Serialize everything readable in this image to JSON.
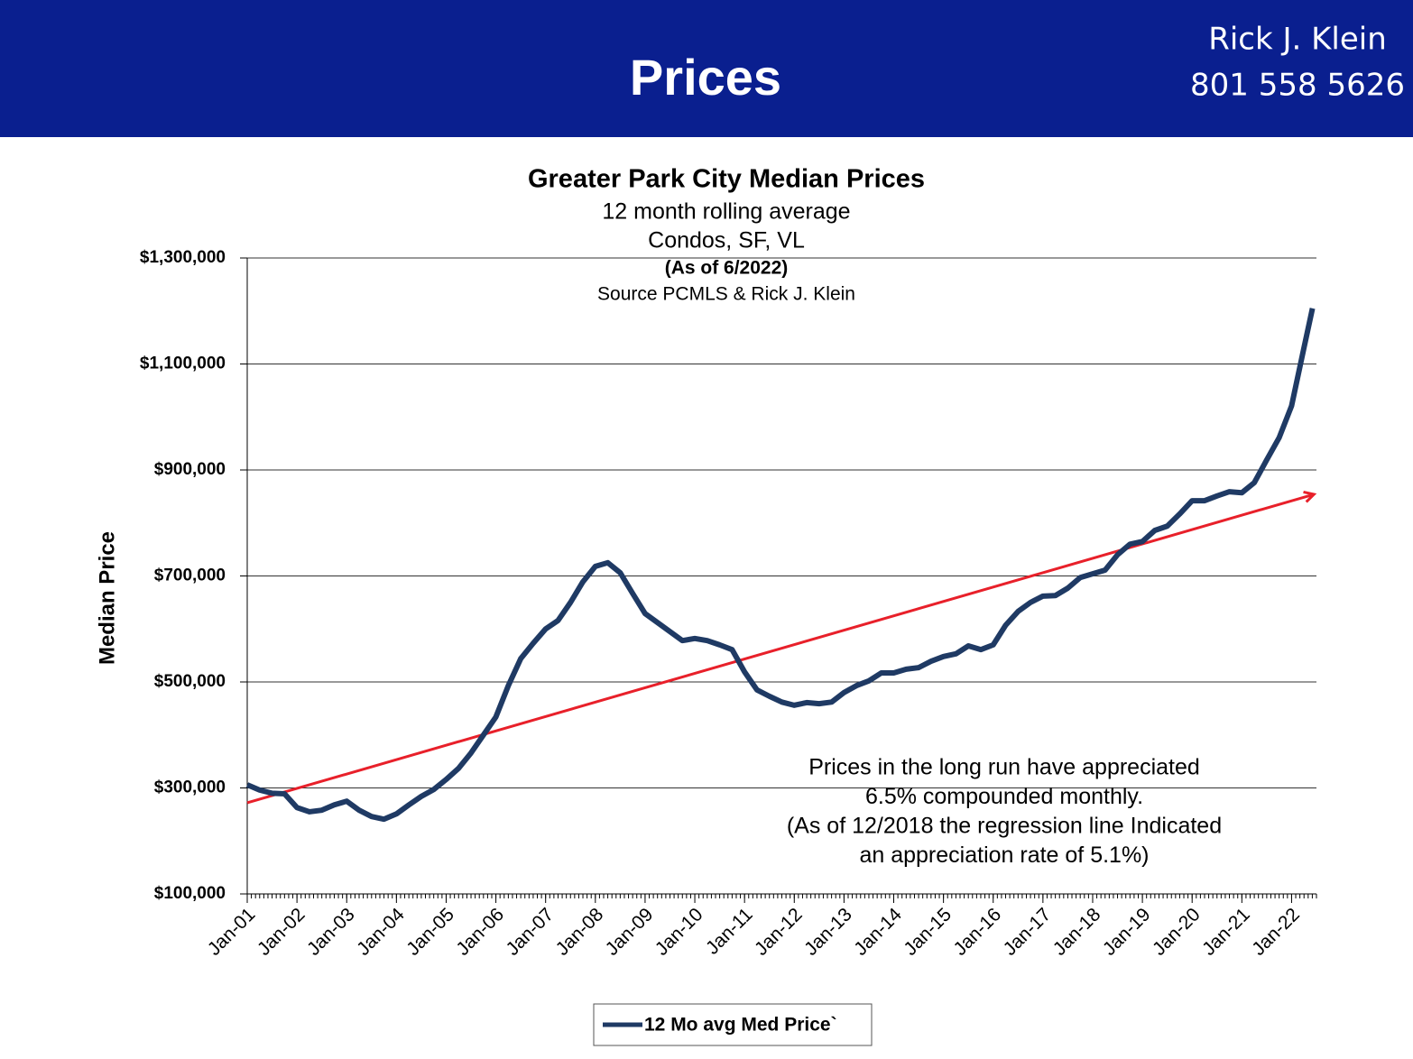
{
  "header": {
    "title": "Prices",
    "name": "Rick J. Klein",
    "phone": "801 558 5626"
  },
  "chart_data": {
    "type": "line",
    "title": "Greater Park City Median Prices",
    "subtitle": [
      "12 month rolling average",
      "Condos, SF, VL",
      "(As of 6/2022)",
      "Source PCMLS & Rick J. Klein"
    ],
    "y_label": "Median Price",
    "annotation": [
      "Prices in the long run have appreciated",
      "6.5% compounded monthly.",
      "(As of 12/2018 the regression line Indicated",
      "an appreciation rate of 5.1%)"
    ],
    "x": [
      2001,
      2001.25,
      2001.5,
      2001.75,
      2002,
      2002.25,
      2002.5,
      2002.75,
      2003,
      2003.25,
      2003.5,
      2003.75,
      2004,
      2004.25,
      2004.5,
      2004.75,
      2005,
      2005.25,
      2005.5,
      2005.75,
      2006,
      2006.25,
      2006.5,
      2006.75,
      2007,
      2007.25,
      2007.5,
      2007.75,
      2008,
      2008.25,
      2008.5,
      2008.75,
      2009,
      2009.25,
      2009.5,
      2009.75,
      2010,
      2010.25,
      2010.5,
      2010.75,
      2011,
      2011.25,
      2011.5,
      2011.75,
      2012,
      2012.25,
      2012.5,
      2012.75,
      2013,
      2013.25,
      2013.5,
      2013.75,
      2014,
      2014.25,
      2014.5,
      2014.75,
      2015,
      2015.25,
      2015.5,
      2015.75,
      2016,
      2016.25,
      2016.5,
      2016.75,
      2017,
      2017.25,
      2017.5,
      2017.75,
      2018,
      2018.25,
      2018.5,
      2018.75,
      2019,
      2019.25,
      2019.5,
      2019.75,
      2020,
      2020.25,
      2020.5,
      2020.75,
      2021,
      2021.25,
      2021.5,
      2021.75,
      2022,
      2022.25,
      2022.42
    ],
    "series": [
      {
        "name": "12 Mo avg Med Price`",
        "color": "#1f3a64",
        "values": [
          306000,
          296000,
          290000,
          289000,
          263000,
          255000,
          258000,
          268000,
          275000,
          258000,
          246000,
          241000,
          251000,
          268000,
          284000,
          297000,
          316000,
          337000,
          366000,
          400000,
          434000,
          493000,
          544000,
          573000,
          600000,
          616000,
          650000,
          689000,
          718000,
          725000,
          706000,
          667000,
          629000,
          612000,
          595000,
          578000,
          582000,
          578000,
          570000,
          561000,
          519000,
          485000,
          473000,
          462000,
          456000,
          461000,
          459000,
          462000,
          480000,
          493000,
          502000,
          517000,
          517000,
          524000,
          527000,
          539000,
          548000,
          553000,
          568000,
          561000,
          570000,
          607000,
          633000,
          650000,
          662000,
          663000,
          677000,
          697000,
          704000,
          711000,
          740000,
          760000,
          765000,
          786000,
          794000,
          817000,
          842000,
          842000,
          851000,
          859000,
          857000,
          876000,
          919000,
          961000,
          1021000,
          1131000,
          1205000
        ]
      }
    ],
    "trendline": {
      "color": "#e8202a",
      "x": [
        2001,
        2022.45
      ],
      "values": [
        272000,
        854000
      ]
    },
    "xlim": [
      2001,
      2022.5
    ],
    "xticks": [
      {
        "value": 2001,
        "label": "Jan-01"
      },
      {
        "value": 2002,
        "label": "Jan-02"
      },
      {
        "value": 2003,
        "label": "Jan-03"
      },
      {
        "value": 2004,
        "label": "Jan-04"
      },
      {
        "value": 2005,
        "label": "Jan-05"
      },
      {
        "value": 2006,
        "label": "Jan-06"
      },
      {
        "value": 2007,
        "label": "Jan-07"
      },
      {
        "value": 2008,
        "label": "Jan-08"
      },
      {
        "value": 2009,
        "label": "Jan-09"
      },
      {
        "value": 2010,
        "label": "Jan-10"
      },
      {
        "value": 2011,
        "label": "Jan-11"
      },
      {
        "value": 2012,
        "label": "Jan-12"
      },
      {
        "value": 2013,
        "label": "Jan-13"
      },
      {
        "value": 2014,
        "label": "Jan-14"
      },
      {
        "value": 2015,
        "label": "Jan-15"
      },
      {
        "value": 2016,
        "label": "Jan-16"
      },
      {
        "value": 2017,
        "label": "Jan-17"
      },
      {
        "value": 2018,
        "label": "Jan-18"
      },
      {
        "value": 2019,
        "label": "Jan-19"
      },
      {
        "value": 2020,
        "label": "Jan-20"
      },
      {
        "value": 2021,
        "label": "Jan-21"
      },
      {
        "value": 2022,
        "label": "Jan-22"
      }
    ],
    "ylim": [
      100000,
      1300000
    ],
    "yticks": [
      {
        "value": 100000,
        "label": "$100,000"
      },
      {
        "value": 300000,
        "label": "$300,000"
      },
      {
        "value": 500000,
        "label": "$500,000"
      },
      {
        "value": 700000,
        "label": "$700,000"
      },
      {
        "value": 900000,
        "label": "$900,000"
      },
      {
        "value": 1100000,
        "label": "$1,100,000"
      },
      {
        "value": 1300000,
        "label": "$1,300,000"
      }
    ],
    "grid": true
  }
}
